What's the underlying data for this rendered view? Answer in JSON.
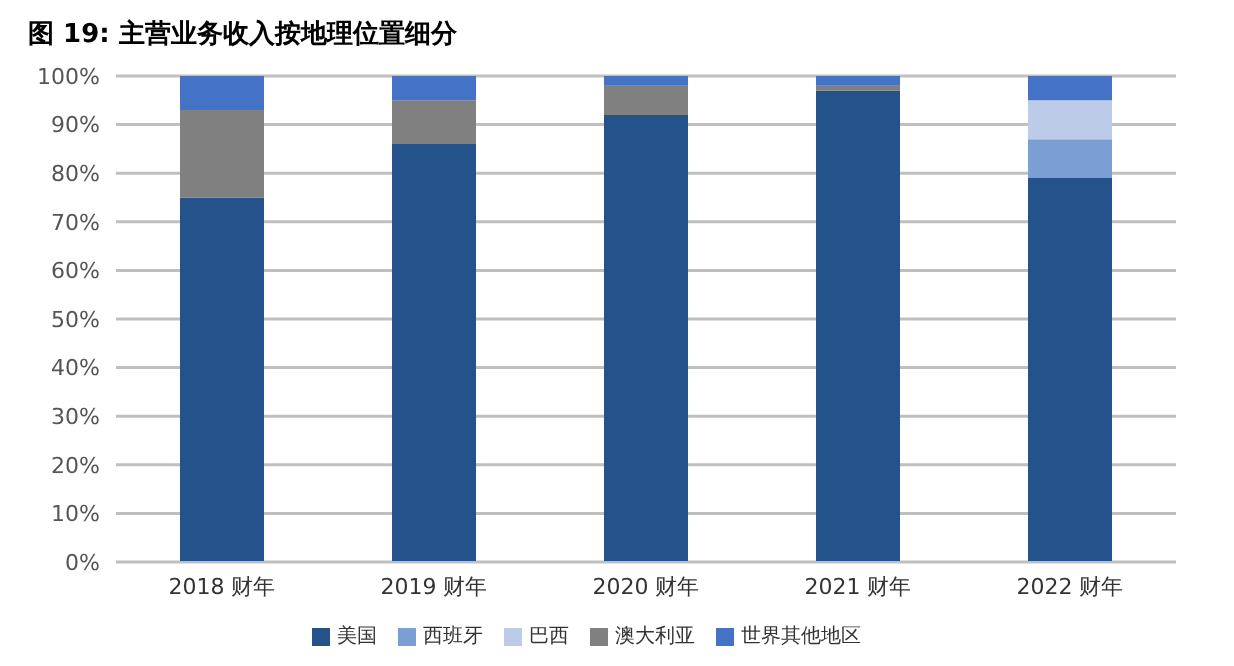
{
  "chart_data": {
    "type": "bar",
    "stacked": true,
    "title": "图 19: 主营业务收入按地理位置细分",
    "categories": [
      "2018 财年",
      "2019 财年",
      "2020 财年",
      "2021 财年",
      "2022 财年"
    ],
    "series": [
      {
        "name": "美国",
        "color": "#23538a",
        "values": [
          75,
          86,
          92,
          97,
          79
        ]
      },
      {
        "name": "西班牙",
        "color": "#7b9fd4",
        "values": [
          0,
          0,
          0,
          0,
          8
        ]
      },
      {
        "name": "巴西",
        "color": "#bccbe7",
        "values": [
          0,
          0,
          0,
          0,
          8
        ]
      },
      {
        "name": "澳大利亚",
        "color": "#808080",
        "values": [
          18,
          9,
          6,
          1,
          0
        ]
      },
      {
        "name": "世界其他地区",
        "color": "#4472c4",
        "values": [
          7,
          5,
          2,
          2,
          5
        ]
      }
    ],
    "ylim": [
      0,
      100
    ],
    "yticks": [
      {
        "value": 0,
        "label": "0%"
      },
      {
        "value": 10,
        "label": "10%"
      },
      {
        "value": 20,
        "label": "20%"
      },
      {
        "value": 30,
        "label": "30%"
      },
      {
        "value": 40,
        "label": "40%"
      },
      {
        "value": 50,
        "label": "50%"
      },
      {
        "value": 60,
        "label": "60%"
      },
      {
        "value": 70,
        "label": "70%"
      },
      {
        "value": 80,
        "label": "80%"
      },
      {
        "value": 90,
        "label": "90%"
      },
      {
        "value": 100,
        "label": "100%"
      }
    ],
    "grid": "y",
    "legend": "bottom"
  }
}
